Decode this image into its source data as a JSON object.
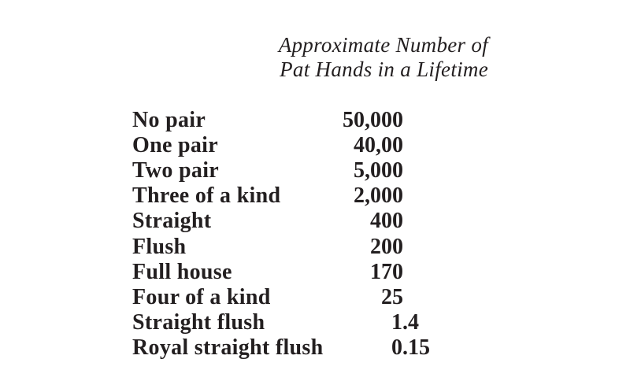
{
  "header": {
    "line1": "Approximate Number of",
    "line2": "Pat Hands in a Lifetime"
  },
  "rows": [
    {
      "hand": "No pair",
      "count": "50,000"
    },
    {
      "hand": "One pair",
      "count": "40,00"
    },
    {
      "hand": "Two pair",
      "count": "5,000"
    },
    {
      "hand": "Three of a kind",
      "count": "2,000"
    },
    {
      "hand": "Straight",
      "count": "400"
    },
    {
      "hand": "Flush",
      "count": "200"
    },
    {
      "hand": "Full house",
      "count": "170"
    },
    {
      "hand": "Four of a kind",
      "count": "25"
    },
    {
      "hand": "Straight flush",
      "count": "1.4"
    },
    {
      "hand": "Royal straight flush",
      "count": "0.15"
    }
  ]
}
